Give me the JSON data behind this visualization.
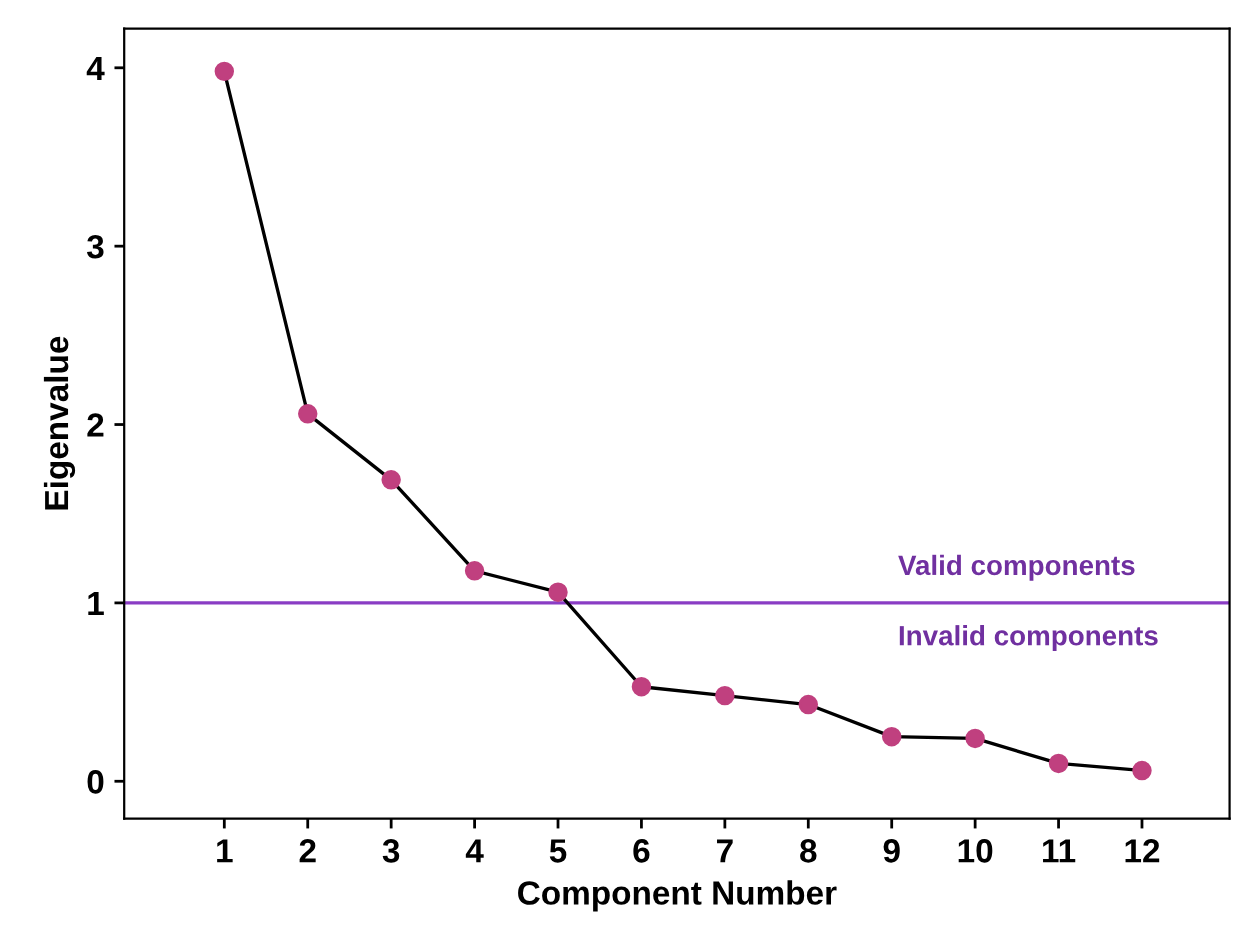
{
  "chart_data": {
    "type": "line",
    "xlabel": "Component Number",
    "ylabel": "Eigenvalue",
    "x": [
      1,
      2,
      3,
      4,
      5,
      6,
      7,
      8,
      9,
      10,
      11,
      12
    ],
    "series": [
      {
        "color": "#c0407f",
        "values": [
          3.98,
          2.06,
          1.69,
          1.18,
          1.06,
          0.53,
          0.48,
          0.43,
          0.25,
          0.24,
          0.1,
          0.06
        ]
      }
    ],
    "xlim": [
      -0.2,
      13.05
    ],
    "xticks": [
      1,
      2,
      3,
      4,
      5,
      6,
      7,
      8,
      9,
      10,
      11,
      12
    ],
    "ylim": [
      -0.21,
      4.22
    ],
    "yticks": [
      0,
      1,
      2,
      3,
      4
    ],
    "ref_lines": [
      {
        "axis": "y",
        "value": 1,
        "color": "#8a3cc4"
      }
    ],
    "annotations": [
      "Valid components",
      "Invalid components"
    ],
    "marker": "circle",
    "line_style": "solid",
    "grid": false,
    "legend": false
  }
}
